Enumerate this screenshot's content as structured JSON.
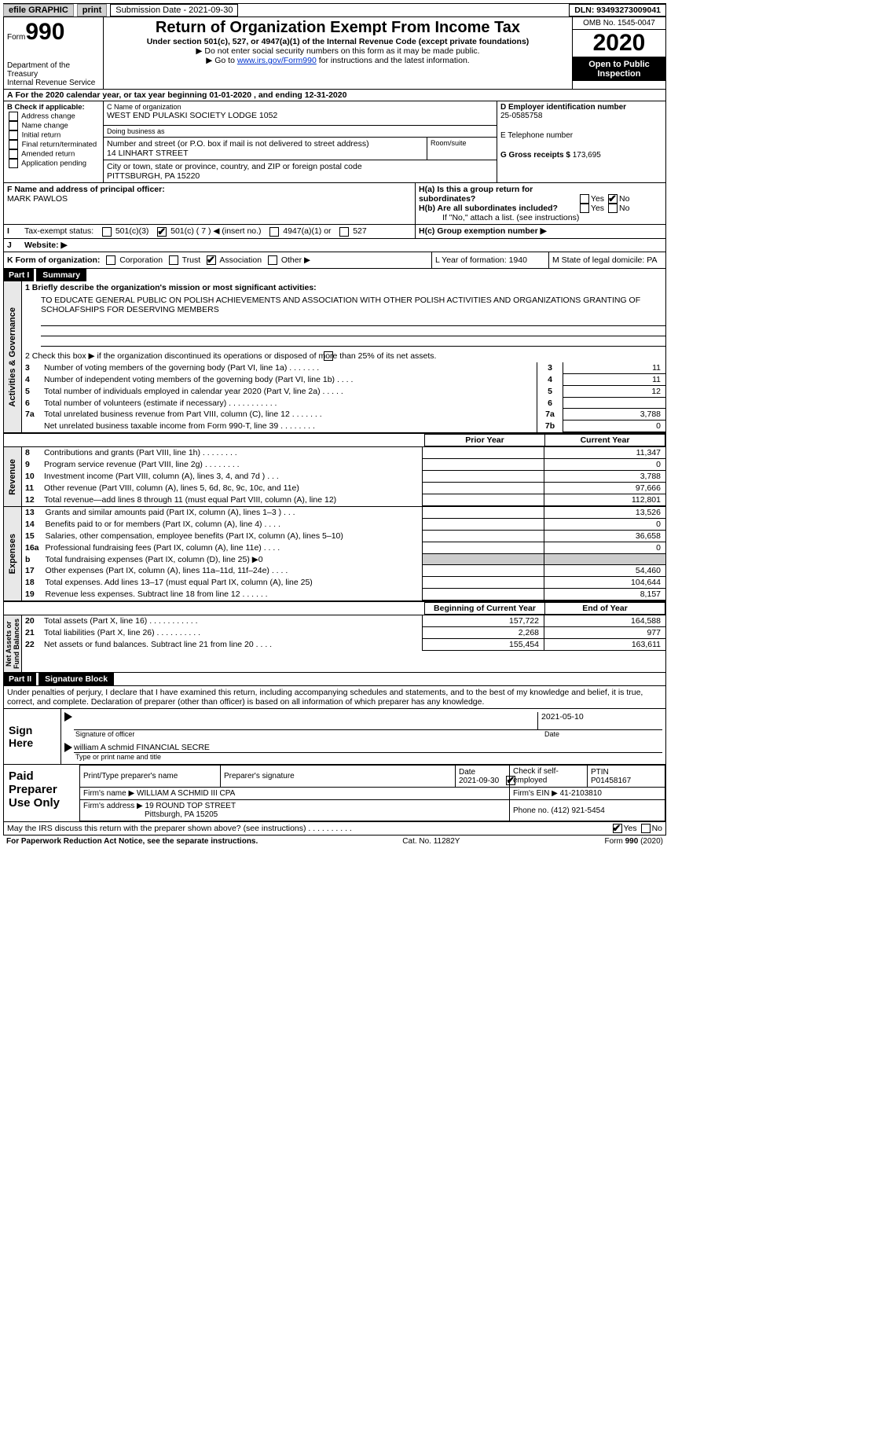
{
  "topbar": {
    "efile": "efile GRAPHIC",
    "print": "print",
    "submission": "Submission Date - 2021-09-30",
    "dln": "DLN: 93493273009041"
  },
  "header": {
    "form": "Form",
    "num": "990",
    "dept": "Department of the Treasury\nInternal Revenue Service",
    "title": "Return of Organization Exempt From Income Tax",
    "sub": "Under section 501(c), 527, or 4947(a)(1) of the Internal Revenue Code (except private foundations)",
    "note1": "▶ Do not enter social security numbers on this form as it may be made public.",
    "note2_pre": "▶ Go to ",
    "note2_link": "www.irs.gov/Form990",
    "note2_post": " for instructions and the latest information.",
    "omb": "OMB No. 1545-0047",
    "year": "2020",
    "insp": "Open to Public Inspection"
  },
  "period": {
    "a": "A",
    "text": "For the 2020 calendar year, or tax year beginning 01-01-2020  , and ending 12-31-2020"
  },
  "B": {
    "label": "B Check if applicable:",
    "items": [
      "Address change",
      "Name change",
      "Initial return",
      "Final return/terminated",
      "Amended return",
      "Application pending"
    ]
  },
  "C": {
    "orglabel": "C Name of organization",
    "org": "WEST END PULASKI SOCIETY LODGE 1052",
    "dbalabel": "Doing business as",
    "dba": "",
    "addrlabel": "Number and street (or P.O. box if mail is not delivered to street address)",
    "room": "Room/suite",
    "addr": "14 LINHART STREET",
    "citylabel": "City or town, state or province, country, and ZIP or foreign postal code",
    "city": "PITTSBURGH, PA  15220"
  },
  "D": {
    "label": "D Employer identification number",
    "val": "25-0585758"
  },
  "E": {
    "label": "E Telephone number",
    "val": ""
  },
  "G": {
    "label": "G Gross receipts $",
    "val": "173,695"
  },
  "F": {
    "label": "F  Name and address of principal officer:",
    "val": "MARK PAWLOS"
  },
  "H": {
    "a": "H(a)  Is this a group return for subordinates?",
    "b": "H(b)  Are all subordinates included?",
    "bna": "If \"No,\" attach a list. (see instructions)",
    "c": "H(c)  Group exemption number ▶",
    "yes": "Yes",
    "no": "No"
  },
  "I": {
    "label": "I",
    "text": "Tax-exempt status:",
    "opts": [
      "501(c)(3)",
      "501(c) ( 7 ) ◀ (insert no.)",
      "4947(a)(1) or",
      "527"
    ]
  },
  "J": {
    "label": "J",
    "text": "Website: ▶"
  },
  "K": {
    "text": "K Form of organization:",
    "opts": [
      "Corporation",
      "Trust",
      "Association",
      "Other ▶"
    ]
  },
  "L": {
    "text": "L Year of formation: 1940"
  },
  "M": {
    "text": "M State of legal domicile: PA"
  },
  "part1": {
    "bar": "Part I",
    "title": "Summary"
  },
  "summary": {
    "l1": "1  Briefly describe the organization's mission or most significant activities:",
    "mission": "TO EDUCATE GENERAL PUBLIC ON POLISH ACHIEVEMENTS AND ASSOCIATION WITH OTHER POLISH ACTIVITIES AND ORGANIZATIONS GRANTING OF SCHOLAFSHIPS FOR DESERVING MEMBERS",
    "l2": "2  Check this box ▶       if the organization discontinued its operations or disposed of more than 25% of its net assets.",
    "rows_gov": [
      {
        "n": "3",
        "d": "Number of voting members of the governing body (Part VI, line 1a)    .    .    .    .    .    .    .",
        "k": "3",
        "v": "11"
      },
      {
        "n": "4",
        "d": "Number of independent voting members of the governing body (Part VI, line 1b)    .    .    .    .",
        "k": "4",
        "v": "11"
      },
      {
        "n": "5",
        "d": "Total number of individuals employed in calendar year 2020 (Part V, line 2a)     .    .    .    .    .",
        "k": "5",
        "v": "12"
      },
      {
        "n": "6",
        "d": "Total number of volunteers (estimate if necessary)    .    .    .    .    .    .    .    .    .    .    .",
        "k": "6",
        "v": ""
      },
      {
        "n": "7a",
        "d": "Total unrelated business revenue from Part VIII, column (C), line 12   .    .    .    .    .    .    .",
        "k": "7a",
        "v": "3,788"
      },
      {
        "n": "",
        "d": "Net unrelated business taxable income from Form 990-T, line 39   .    .    .    .    .    .    .    .",
        "k": "7b",
        "v": "0"
      }
    ],
    "colhdr_prior": "Prior Year",
    "colhdr_curr": "Current Year",
    "rows_rev": [
      {
        "n": "8",
        "d": "Contributions and grants (Part VIII, line 1h)    .    .    .    .    .    .    .    .",
        "p": "",
        "c": "11,347"
      },
      {
        "n": "9",
        "d": "Program service revenue (Part VIII, line 2g)    .    .    .    .    .    .    .    .",
        "p": "",
        "c": "0"
      },
      {
        "n": "10",
        "d": "Investment income (Part VIII, column (A), lines 3, 4, and 7d )    .    .    .",
        "p": "",
        "c": "3,788"
      },
      {
        "n": "11",
        "d": "Other revenue (Part VIII, column (A), lines 5, 6d, 8c, 9c, 10c, and 11e)",
        "p": "",
        "c": "97,666"
      },
      {
        "n": "12",
        "d": "Total revenue—add lines 8 through 11 (must equal Part VIII, column (A), line 12)",
        "p": "",
        "c": "112,801"
      }
    ],
    "rows_exp": [
      {
        "n": "13",
        "d": "Grants and similar amounts paid (Part IX, column (A), lines 1–3 )   .    .    .",
        "p": "",
        "c": "13,526"
      },
      {
        "n": "14",
        "d": "Benefits paid to or for members (Part IX, column (A), line 4)    .    .    .    .",
        "p": "",
        "c": "0"
      },
      {
        "n": "15",
        "d": "Salaries, other compensation, employee benefits (Part IX, column (A), lines 5–10)",
        "p": "",
        "c": "36,658"
      },
      {
        "n": "16a",
        "d": "Professional fundraising fees (Part IX, column (A), line 11e)    .    .    .    .",
        "p": "",
        "c": "0"
      },
      {
        "n": "b",
        "d": "Total fundraising expenses (Part IX, column (D), line 25) ▶0",
        "p": "gray",
        "c": "gray"
      },
      {
        "n": "17",
        "d": "Other expenses (Part IX, column (A), lines 11a–11d, 11f–24e)    .    .    .    .",
        "p": "",
        "c": "54,460"
      },
      {
        "n": "18",
        "d": "Total expenses. Add lines 13–17 (must equal Part IX, column (A), line 25)",
        "p": "",
        "c": "104,644"
      },
      {
        "n": "19",
        "d": "Revenue less expenses. Subtract line 18 from line 12  .    .    .    .    .    .",
        "p": "",
        "c": "8,157"
      }
    ],
    "colhdr_beg": "Beginning of Current Year",
    "colhdr_end": "End of Year",
    "rows_net": [
      {
        "n": "20",
        "d": "Total assets (Part X, line 16)   .    .    .    .    .    .    .    .    .    .    .",
        "p": "157,722",
        "c": "164,588"
      },
      {
        "n": "21",
        "d": "Total liabilities (Part X, line 26)   .    .    .    .    .    .    .    .    .    .",
        "p": "2,268",
        "c": "977"
      },
      {
        "n": "22",
        "d": "Net assets or fund balances. Subtract line 21 from line 20    .    .    .    .",
        "p": "155,454",
        "c": "163,611"
      }
    ]
  },
  "part2": {
    "bar": "Part II",
    "title": "Signature Block"
  },
  "penalty": "Under penalties of perjury, I declare that I have examined this return, including accompanying schedules and statements, and to the best of my knowledge and belief, it is true, correct, and complete. Declaration of preparer (other than officer) is based on all information of which preparer has any knowledge.",
  "sign": {
    "here": "Sign Here",
    "sigoff": "Signature of officer",
    "date": "Date",
    "datev": "2021-05-10",
    "name": "william A schmid  FINANCIAL SECRE",
    "typelbl": "Type or print name and title"
  },
  "prep": {
    "label": "Paid Preparer Use Only",
    "h": [
      "Print/Type preparer's name",
      "Preparer's signature",
      "Date",
      "Check        if self-employed",
      "PTIN"
    ],
    "hvals": [
      "",
      "",
      "2021-09-30",
      "",
      "P01458167"
    ],
    "firm": "Firm's name    ▶ WILLIAM A SCHMID III CPA",
    "ein": "Firm's EIN ▶ 41-2103810",
    "addr": "Firm's address ▶ 19 ROUND TOP STREET",
    "addr2": "Pittsburgh, PA  15205",
    "phone": "Phone no. (412) 921-5454"
  },
  "discuss": "May the IRS discuss this return with the preparer shown above? (see instructions)   .    .    .    .    .    .    .    .    .    .",
  "foot": {
    "l": "For Paperwork Reduction Act Notice, see the separate instructions.",
    "c": "Cat. No. 11282Y",
    "r": "Form 990 (2020)"
  }
}
